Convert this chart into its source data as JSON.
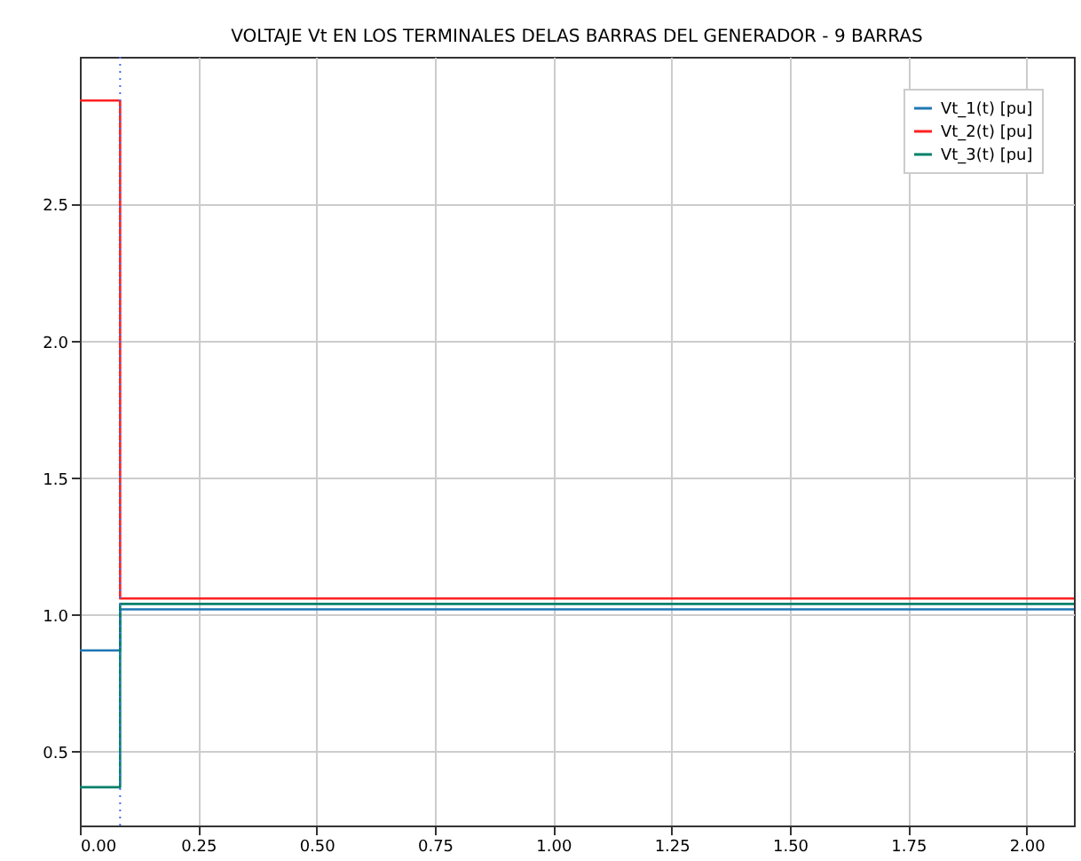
{
  "chart_data": {
    "type": "step",
    "title": "VOLTAJE Vt EN LOS TERMINALES DELAS BARRAS DEL GENERADOR - 9 BARRAS",
    "x": [
      0,
      0.085,
      2.1
    ],
    "series": [
      {
        "name": "Vt_1(t) [pu]",
        "color": "#1f77b4",
        "values": [
          0.87,
          1.02,
          1.02
        ]
      },
      {
        "name": "Vt_2(t) [pu]",
        "color": "#ff2020",
        "values": [
          2.88,
          1.06,
          1.06
        ]
      },
      {
        "name": "Vt_3(t) [pu]",
        "color": "#00806a",
        "values": [
          0.37,
          1.04,
          1.04
        ]
      }
    ],
    "xlim": [
      0,
      2.1
    ],
    "ylim": [
      0.23,
      3.04
    ],
    "xticks": [
      {
        "value": 0,
        "label": "0.00"
      },
      0.25,
      {
        "value": 0.5,
        "label": "0.50"
      },
      0.75,
      {
        "value": 1,
        "label": "1.00"
      },
      1.25,
      {
        "value": 1.5,
        "label": "1.50"
      },
      1.75,
      {
        "value": 2,
        "label": "2.00"
      }
    ],
    "yticks": [
      0.5,
      {
        "value": 1,
        "label": "1.0"
      },
      1.5,
      {
        "value": 2,
        "label": "2.0"
      },
      2.5
    ],
    "ref_lines": [
      {
        "axis": "x",
        "value": 0.085,
        "color": "#4a6cf0",
        "line_style": "dotted"
      }
    ],
    "grid": true,
    "legend": "top right",
    "marker": "none",
    "line_style": "solid"
  }
}
